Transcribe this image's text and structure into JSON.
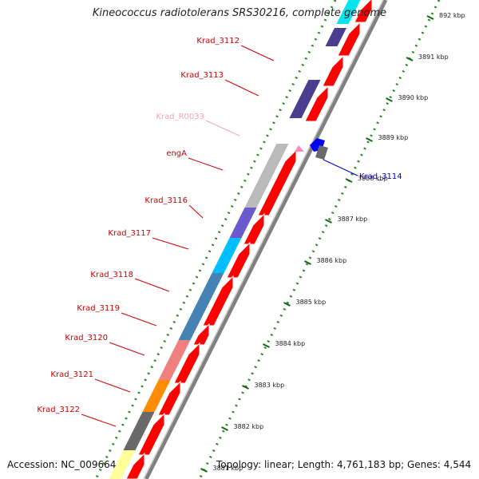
{
  "title": "Kineococcus radiotolerans SRS30216, complete genome",
  "footer": {
    "accession": "Accession: NC_009664",
    "topology": "Topology: linear; Length: 4,761,183 bp; Genes: 4,544"
  },
  "scale_labels": [
    "892 kbp",
    "3891 kbp",
    "3890 kbp",
    "3889 kbp",
    "3888 kbp",
    "3887 kbp",
    "3886 kbp",
    "3885 kbp",
    "3884 kbp",
    "3883 kbp",
    "3882 kbp",
    "3881 kbp"
  ],
  "genes": [
    {
      "name": "Krad_3112",
      "color": "#cc0000",
      "feature_color": "#4a3f8f"
    },
    {
      "name": "Krad_3113",
      "color": "#cc0000",
      "feature_color": "#4a3f8f"
    },
    {
      "name": "Krad_R0033",
      "color": "#f4a0c0",
      "feature_color": "#ff88bb"
    },
    {
      "name": "engA",
      "color": "#cc0000",
      "feature_color": "#bbbbbb"
    },
    {
      "name": "Krad_3116",
      "color": "#cc0000",
      "feature_color": "#6a5acd"
    },
    {
      "name": "Krad_3117",
      "color": "#cc0000",
      "feature_color": "#00bfff"
    },
    {
      "name": "Krad_3118",
      "color": "#cc0000",
      "feature_color": "#4682b4"
    },
    {
      "name": "Krad_3119",
      "color": "#cc0000",
      "feature_color": "#4682b4"
    },
    {
      "name": "Krad_3120",
      "color": "#cc0000",
      "feature_color": "#f08080"
    },
    {
      "name": "Krad_3121",
      "color": "#cc0000",
      "feature_color": "#ff8c00"
    },
    {
      "name": "Krad_3122",
      "color": "#cc0000",
      "feature_color": "#696969"
    },
    {
      "name": "Krad_3114",
      "color": "#0000cc",
      "feature_color": "#0000ff"
    }
  ],
  "colors": {
    "backbone": "#808080",
    "cds_arrow": "#ff0000",
    "tick": "#228b22",
    "gc_track": "#ffff99"
  }
}
